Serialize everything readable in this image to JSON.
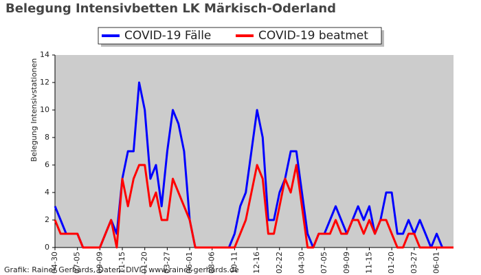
{
  "chart_data": {
    "type": "line",
    "title": "Belegung Intensivbetten LK Märkisch-Oderland",
    "y_label": "Belegung Intensivstationen",
    "footer": "Grafik: Rainer Gerhards, Daten: DIVI | www.rainer-gerhards.de",
    "legend": "top",
    "background": "#cccccc",
    "categories": [
      "04-30",
      null,
      null,
      null,
      "07-05",
      null,
      null,
      null,
      "09-09",
      null,
      null,
      null,
      "11-15",
      null,
      null,
      null,
      "01-20",
      null,
      null,
      null,
      "03-27",
      null,
      null,
      null,
      "06-01",
      null,
      null,
      null,
      "08-06",
      null,
      null,
      null,
      "10-11",
      null,
      null,
      null,
      "12-16",
      null,
      null,
      null,
      "02-22",
      null,
      null,
      null,
      "04-30",
      null,
      null,
      null,
      "07-05",
      null,
      null,
      null,
      "09-09",
      null,
      null,
      null,
      "11-15",
      null,
      null,
      null,
      "01-20",
      null,
      null,
      null,
      "03-27",
      null,
      null,
      null,
      "06-01",
      null,
      null,
      null
    ],
    "series": [
      {
        "name": "COVID-19 Fälle",
        "color": "#0000ff",
        "values": [
          3,
          2,
          1,
          1,
          1,
          0,
          0,
          0,
          0,
          1,
          2,
          1,
          5,
          7,
          7,
          12,
          10,
          5,
          6,
          3,
          7,
          10,
          9,
          7,
          2,
          0,
          0,
          0,
          0,
          0,
          0,
          0,
          1,
          3,
          4,
          7,
          10,
          8,
          2,
          2,
          4,
          5,
          7,
          7,
          4,
          1,
          0,
          1,
          1,
          2,
          3,
          2,
          1,
          2,
          3,
          2,
          3,
          1,
          2,
          4,
          4,
          1,
          1,
          2,
          1,
          2,
          1,
          0,
          1,
          0,
          0,
          0
        ]
      },
      {
        "name": "COVID-19 beatmet",
        "color": "#ff0000",
        "values": [
          2,
          1,
          1,
          1,
          1,
          0,
          0,
          0,
          0,
          1,
          2,
          0,
          5,
          3,
          5,
          6,
          6,
          3,
          4,
          2,
          2,
          5,
          4,
          3,
          2,
          0,
          0,
          0,
          0,
          0,
          0,
          0,
          0,
          1,
          2,
          4,
          6,
          5,
          1,
          1,
          3,
          5,
          4,
          6,
          3,
          0,
          0,
          1,
          1,
          1,
          2,
          1,
          1,
          2,
          2,
          1,
          2,
          1,
          2,
          2,
          1,
          0,
          0,
          1,
          1,
          0,
          0,
          0,
          0,
          0,
          0,
          0
        ]
      }
    ],
    "ylim": [
      0,
      14
    ],
    "yticks": [
      0,
      2,
      4,
      6,
      8,
      10,
      12,
      14
    ]
  }
}
